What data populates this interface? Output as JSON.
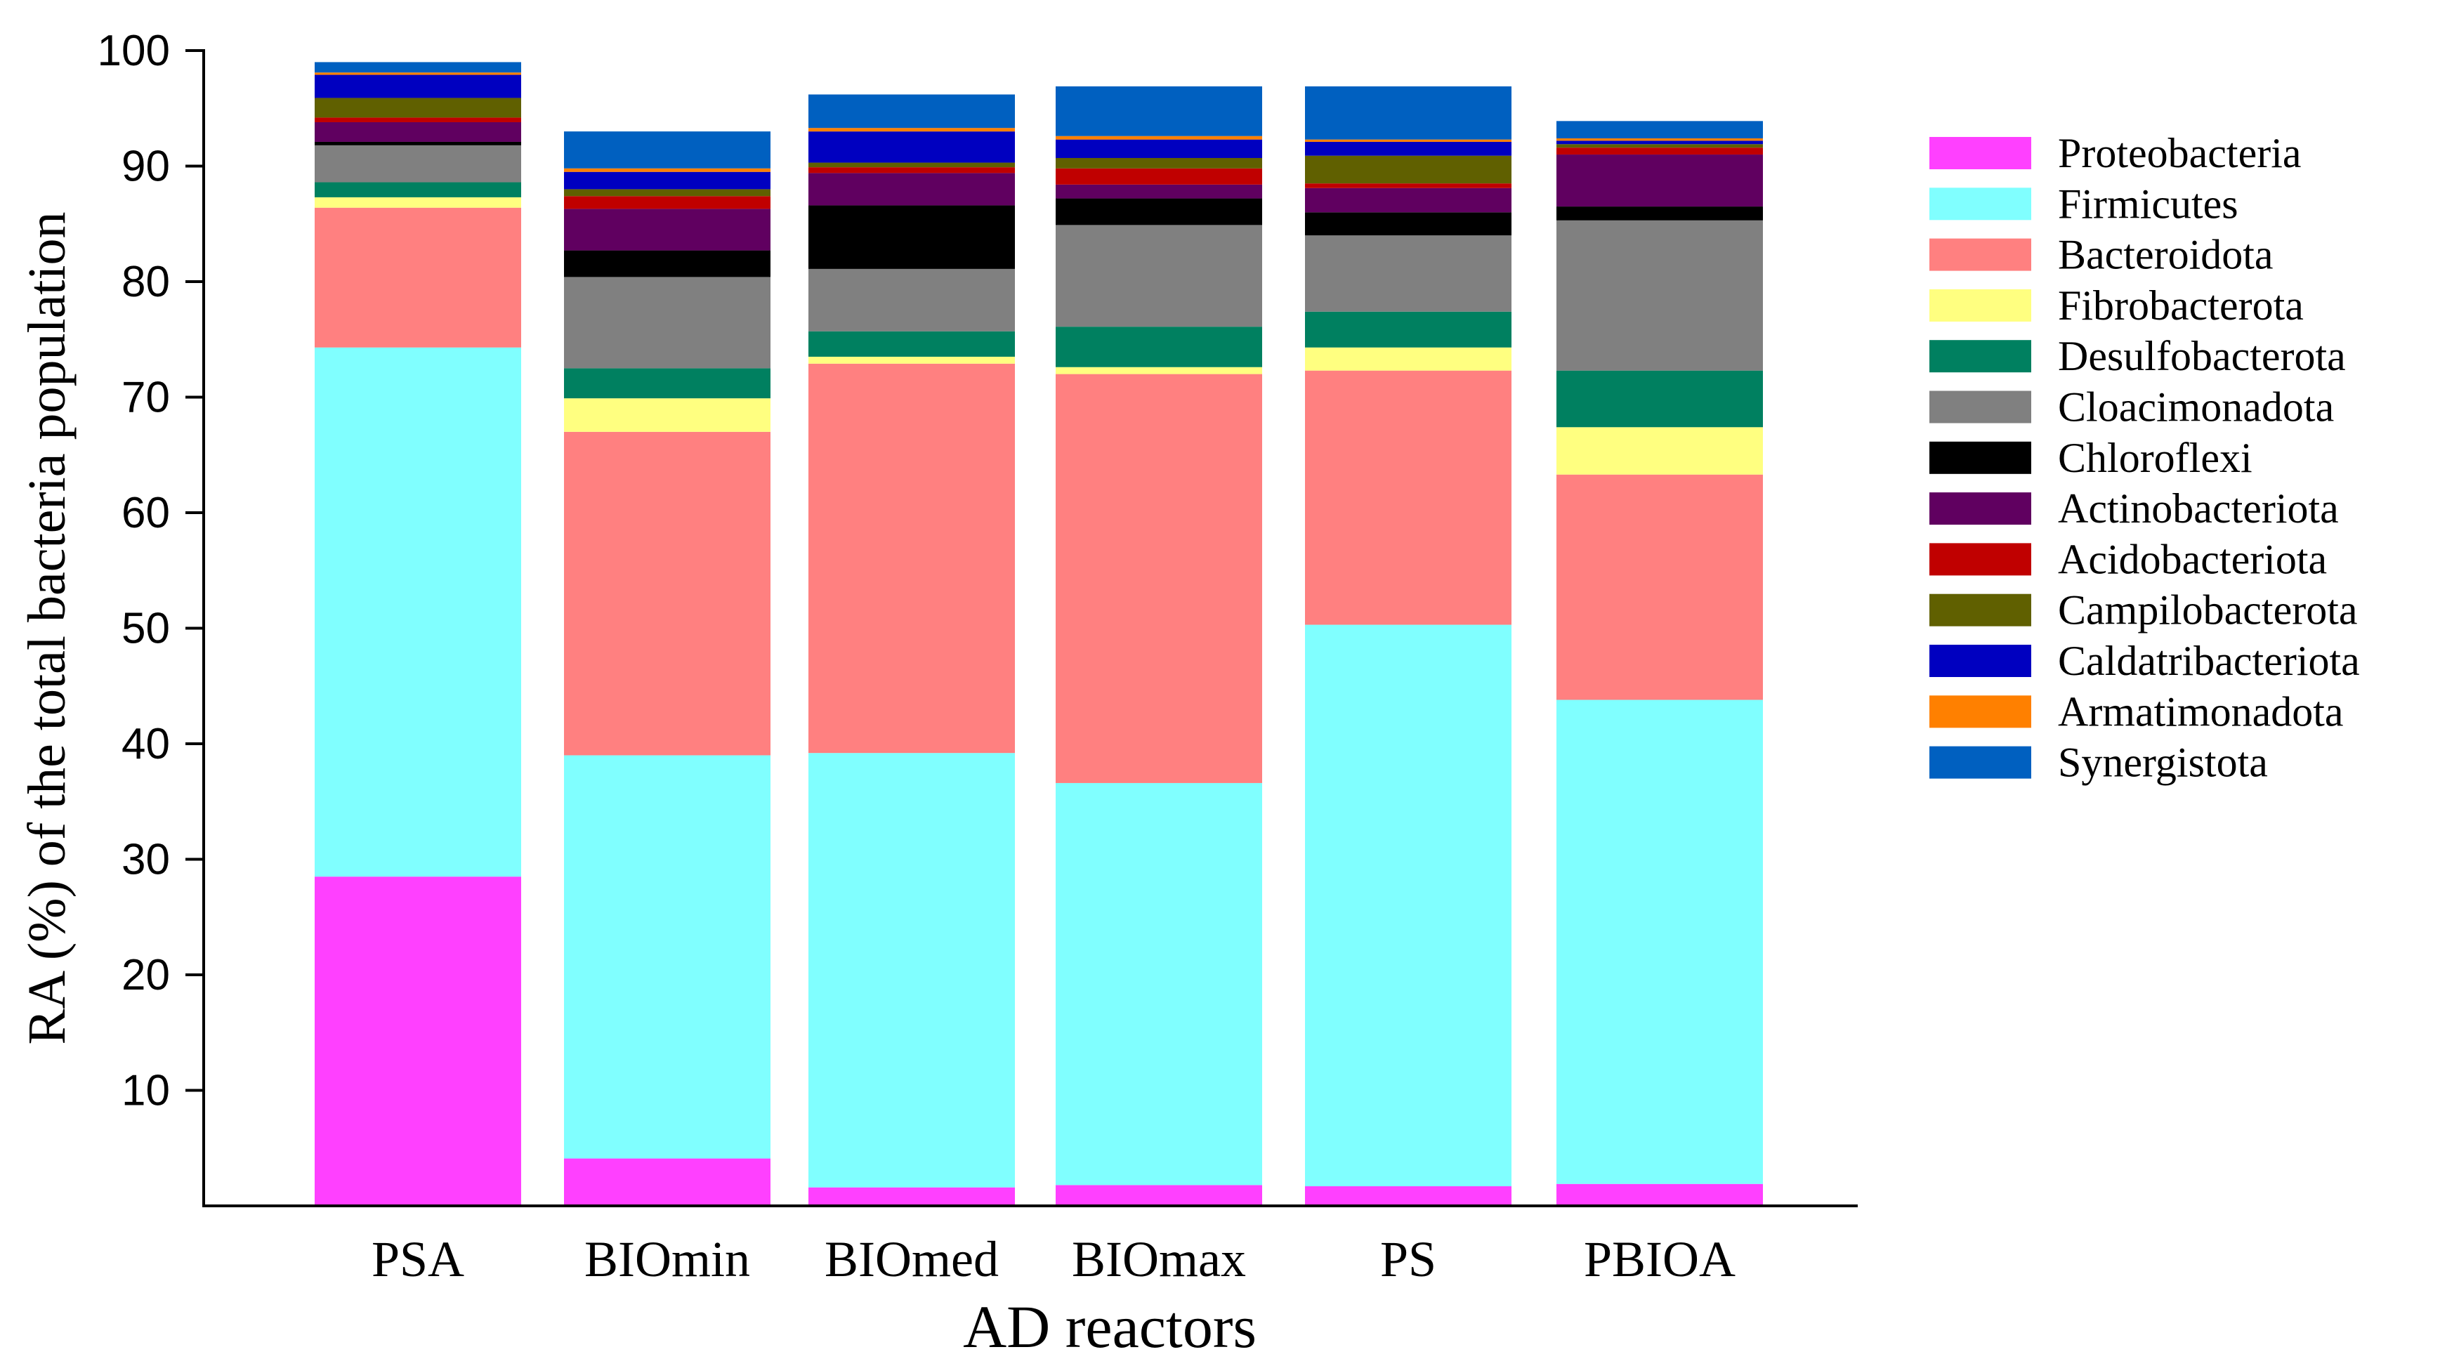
{
  "chart_data": {
    "type": "bar",
    "stacked": true,
    "title": "",
    "xlabel": "AD reactors",
    "ylabel": "RA (%) of the total bacteria population",
    "ylim": [
      0,
      100
    ],
    "yticks": [
      10,
      20,
      30,
      40,
      50,
      60,
      70,
      80,
      90,
      100
    ],
    "legend_position": "right",
    "categories": [
      "PSA",
      "BIOmin",
      "BIOmed",
      "BIOmax",
      "PS",
      "PBIOA"
    ],
    "series": [
      {
        "name": "Proteobacteria",
        "color": "#ff40ff",
        "values": [
          28.5,
          4.1,
          1.6,
          1.8,
          1.7,
          1.9
        ]
      },
      {
        "name": "Firmicutes",
        "color": "#80ffff",
        "values": [
          45.8,
          34.9,
          37.6,
          34.8,
          48.6,
          41.9
        ]
      },
      {
        "name": "Bacteroidota",
        "color": "#ff8080",
        "values": [
          12.1,
          28.0,
          33.7,
          35.4,
          22.0,
          19.5
        ]
      },
      {
        "name": "Fibrobacterota",
        "color": "#ffff80",
        "values": [
          0.9,
          2.9,
          0.6,
          0.6,
          2.0,
          4.1
        ]
      },
      {
        "name": "Desulfobacterota",
        "color": "#008060",
        "values": [
          1.3,
          2.6,
          2.2,
          3.5,
          3.1,
          4.9
        ]
      },
      {
        "name": "Cloacimonadota",
        "color": "#808080",
        "values": [
          3.2,
          7.9,
          5.4,
          8.8,
          6.6,
          13.0
        ]
      },
      {
        "name": "Chloroflexi",
        "color": "#000000",
        "values": [
          0.3,
          2.3,
          5.5,
          2.3,
          2.0,
          1.2
        ]
      },
      {
        "name": "Actinobacteriota",
        "color": "#600060",
        "values": [
          1.7,
          3.6,
          2.8,
          1.2,
          2.1,
          4.5
        ]
      },
      {
        "name": "Acidobacteriota",
        "color": "#c00000",
        "values": [
          0.4,
          1.1,
          0.5,
          1.4,
          0.4,
          0.6
        ]
      },
      {
        "name": "Campilobacterota",
        "color": "#606000",
        "values": [
          1.7,
          0.6,
          0.4,
          0.9,
          2.4,
          0.3
        ]
      },
      {
        "name": "Caldatribacteriota",
        "color": "#0000c0",
        "values": [
          2.0,
          1.5,
          2.7,
          1.6,
          1.2,
          0.3
        ]
      },
      {
        "name": "Armatimonadota",
        "color": "#ff8000",
        "values": [
          0.2,
          0.3,
          0.3,
          0.3,
          0.2,
          0.2
        ]
      },
      {
        "name": "Synergistota",
        "color": "#0060c0",
        "values": [
          0.9,
          3.2,
          2.9,
          4.3,
          4.6,
          1.5
        ]
      }
    ]
  }
}
